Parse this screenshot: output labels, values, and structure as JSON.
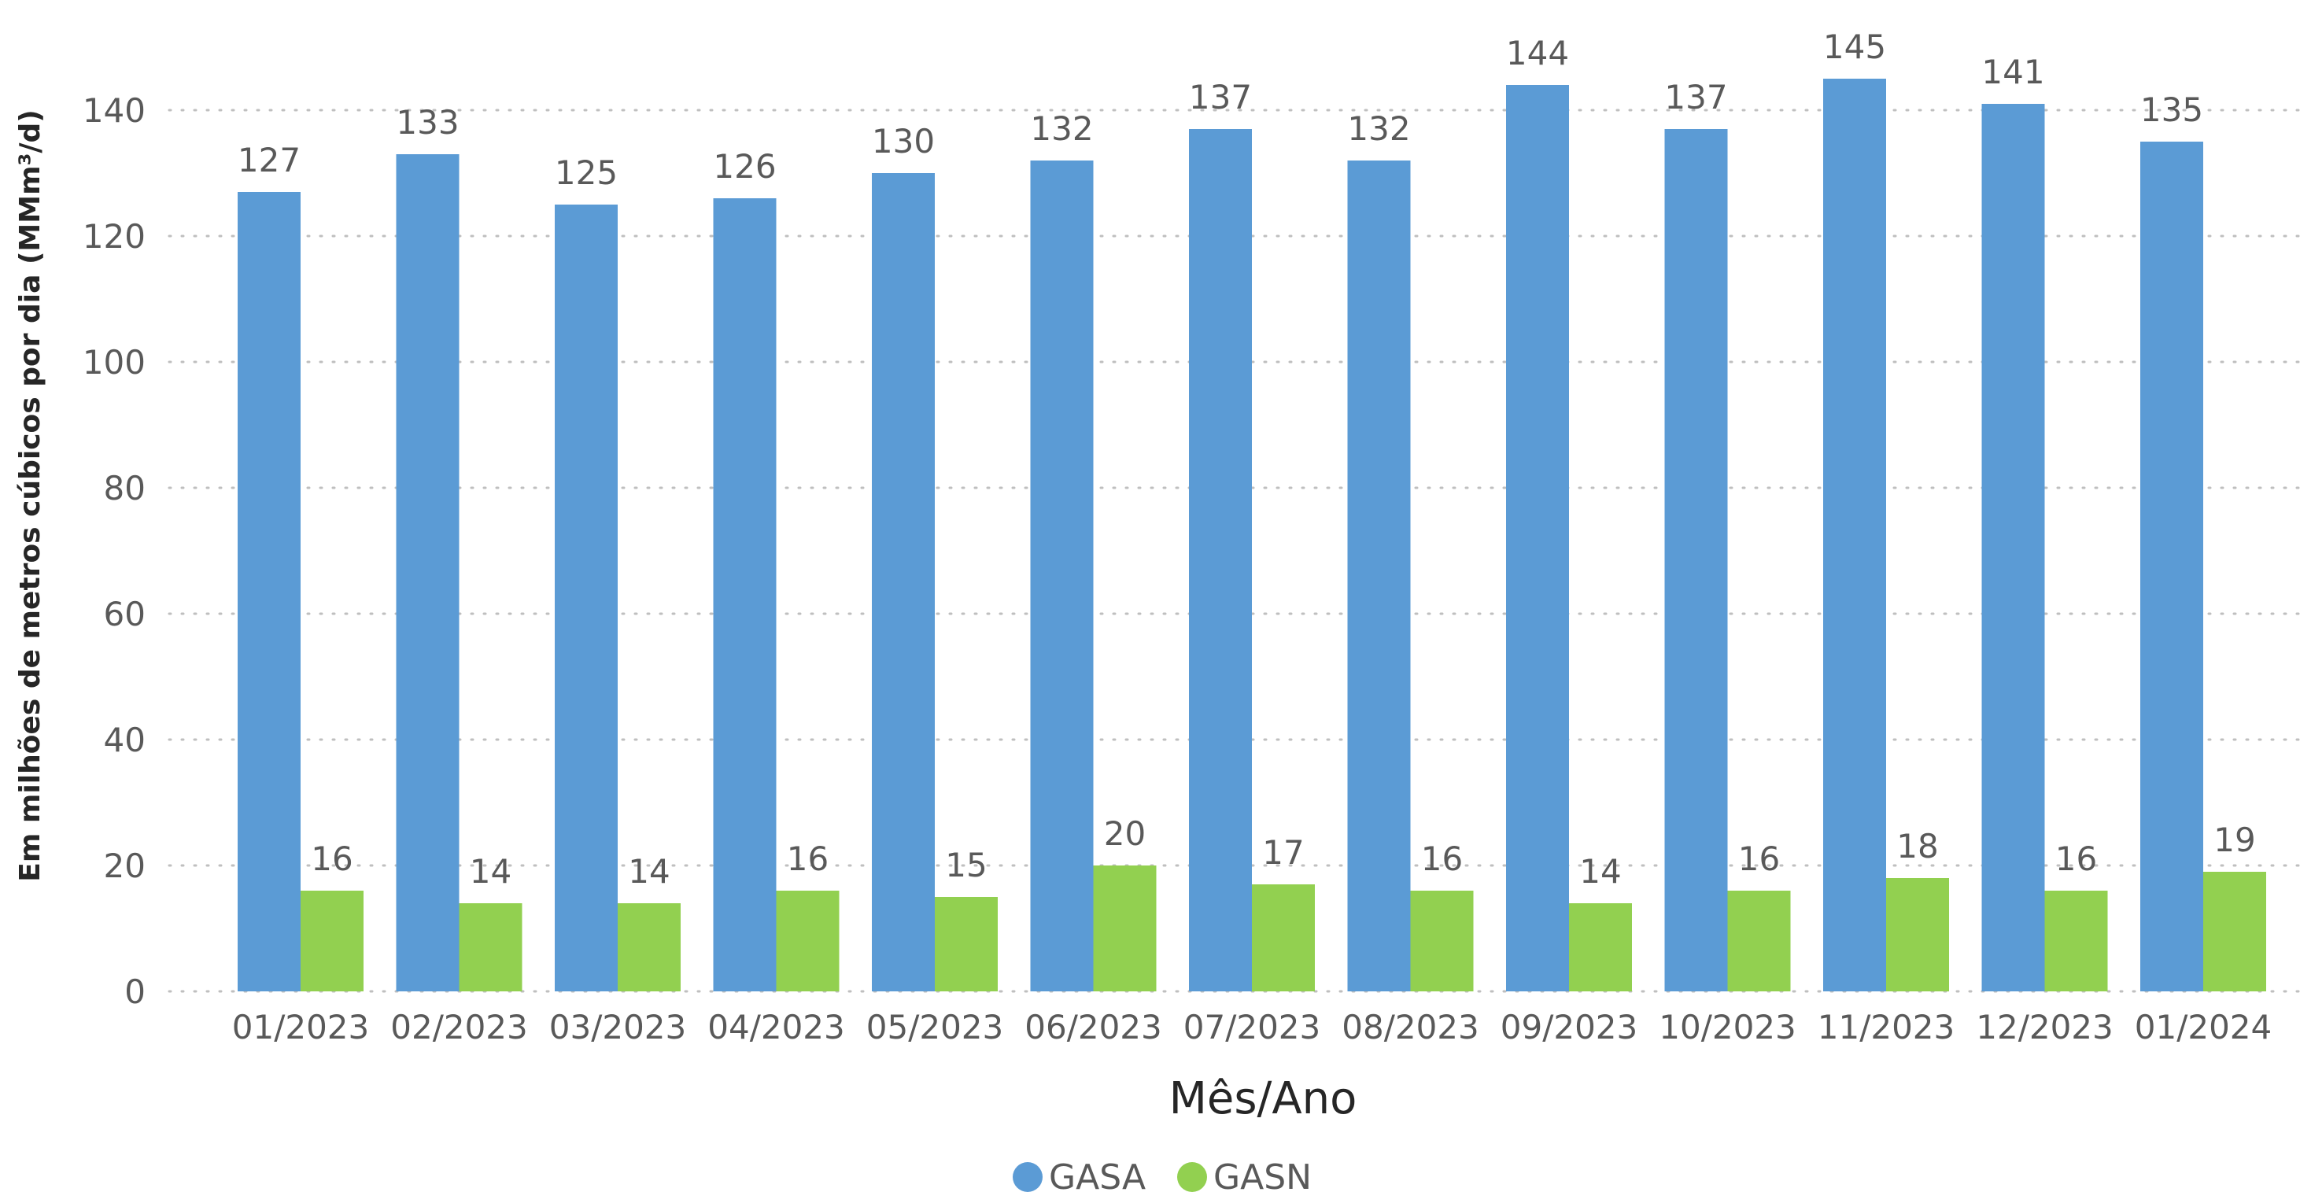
{
  "chart_data": {
    "type": "bar",
    "categories": [
      "01/2023",
      "02/2023",
      "03/2023",
      "04/2023",
      "05/2023",
      "06/2023",
      "07/2023",
      "08/2023",
      "09/2023",
      "10/2023",
      "11/2023",
      "12/2023",
      "01/2024"
    ],
    "series": [
      {
        "name": "GASA",
        "color": "#5b9bd5",
        "values": [
          127,
          133,
          125,
          126,
          130,
          132,
          137,
          132,
          144,
          137,
          145,
          141,
          135
        ]
      },
      {
        "name": "GASN",
        "color": "#92d050",
        "values": [
          16,
          14,
          14,
          16,
          15,
          20,
          17,
          16,
          14,
          16,
          18,
          16,
          19
        ]
      }
    ],
    "title": "",
    "xlabel": "Mês/Ano",
    "ylabel": "Em milhões de metros cúbicos por dia (MMm³/d)",
    "ylim": [
      0,
      140
    ],
    "yticks": [
      0,
      20,
      40,
      60,
      80,
      100,
      120,
      140
    ],
    "grid": true,
    "legend": "bottom-center"
  }
}
